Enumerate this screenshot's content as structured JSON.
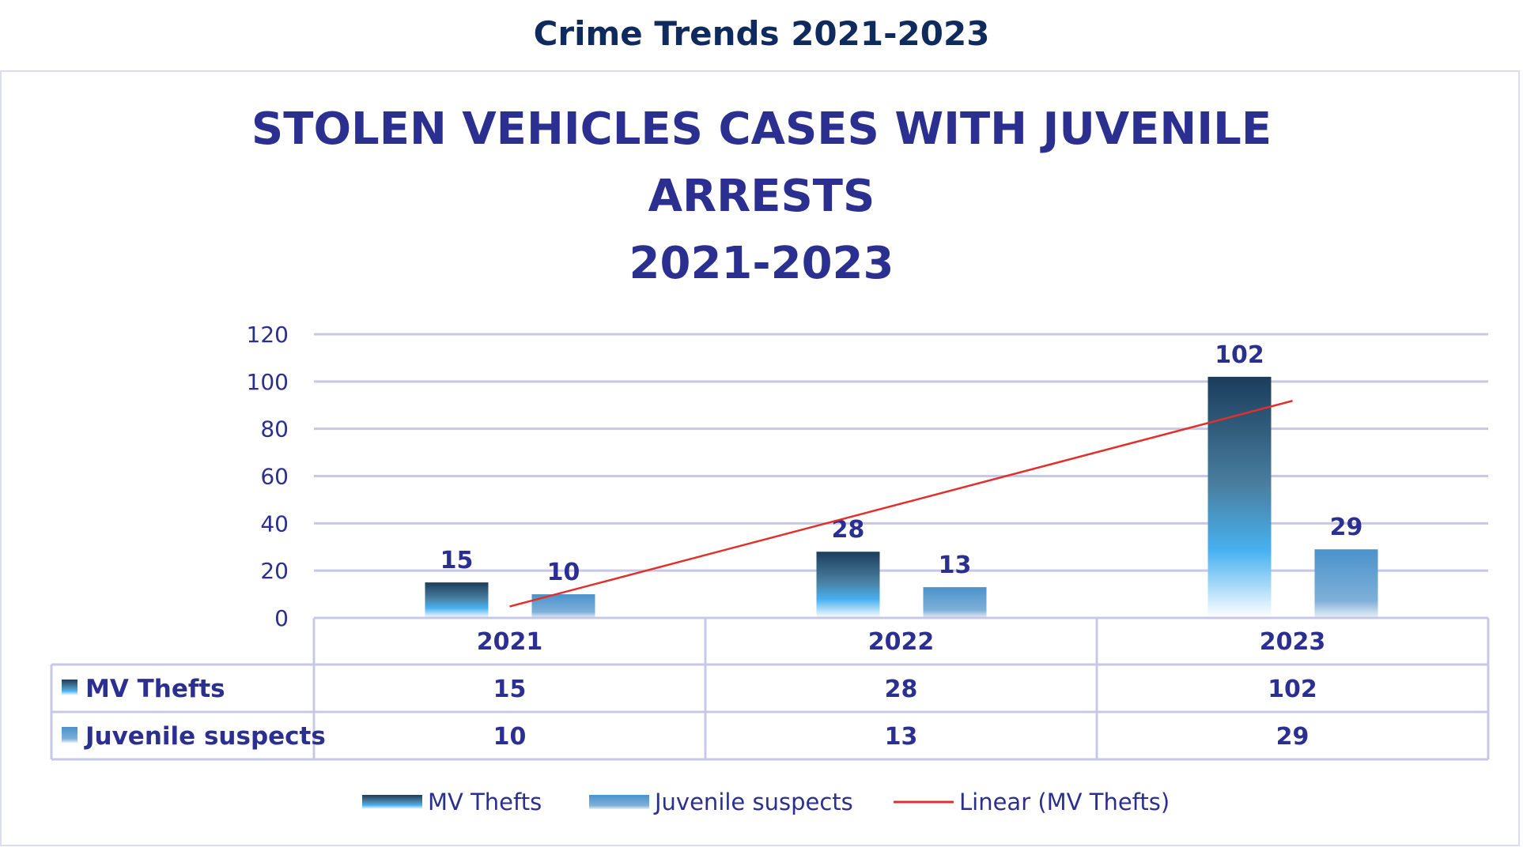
{
  "page_title": "Crime Trends 2021-2023",
  "chart_data": {
    "type": "bar",
    "title_lines": [
      "STOLEN VEHICLES CASES WITH JUVENILE",
      "ARRESTS",
      "2021-2023"
    ],
    "categories": [
      "2021",
      "2022",
      "2023"
    ],
    "series": [
      {
        "name": "MV Thefts",
        "values": [
          15,
          28,
          102
        ],
        "color_top": "#1b3d5c",
        "color_bottom": "#ffffff",
        "color_mid": "#47b0f0"
      },
      {
        "name": "Juvenile suspects",
        "values": [
          10,
          13,
          29
        ],
        "color_top": "#4a92cc",
        "color_bottom": "#e8f0f8"
      }
    ],
    "trendline": {
      "name": "Linear (MV Thefts)",
      "type": "linear",
      "of_series": "MV Thefts",
      "color": "#e0302a"
    },
    "yticks": [
      0,
      20,
      40,
      60,
      80,
      100,
      120
    ],
    "ylim": [
      0,
      120
    ],
    "grid": true,
    "data_labels": true,
    "data_table": true,
    "legend": "bottom",
    "text_color": "#2b2f8f"
  }
}
